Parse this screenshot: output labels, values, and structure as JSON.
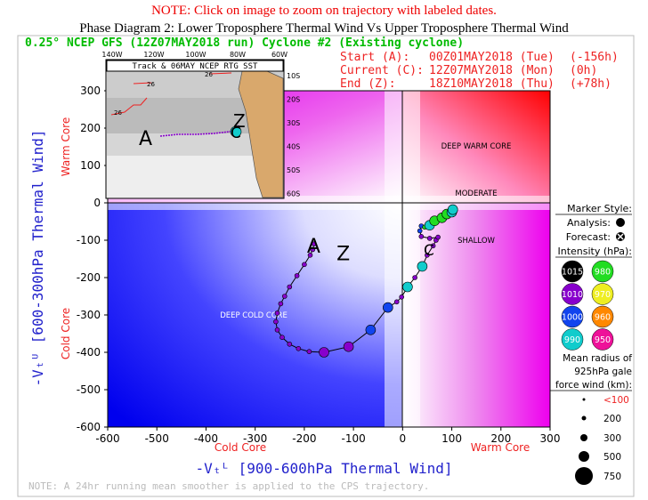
{
  "header": {
    "note": "NOTE: Click on image to zoom on trajectory with labeled dates.",
    "title": "Phase Diagram 2: Lower Troposphere Thermal Wind Vs Upper Troposphere Thermal Wind"
  },
  "run_title": "0.25° NCEP GFS (12Z07MAY2018 run) Cyclone #2 (Existing cyclone)",
  "times": [
    {
      "label": "Start (A):",
      "time": "00Z01MAY2018 (Tue)",
      "offset": "(-156h)"
    },
    {
      "label": "Current (C):",
      "time": "12Z07MAY2018 (Mon)",
      "offset": "(0h)"
    },
    {
      "label": "End (Z):",
      "time": "18Z10MAY2018 (Thu)",
      "offset": "(+78h)"
    }
  ],
  "inset": {
    "title": "Track & 06MAY NCEP RTG SST",
    "lon_labels": [
      "140W",
      "120W",
      "100W",
      "80W",
      "60W"
    ],
    "lat_labels": [
      "10S",
      "20S",
      "30S",
      "40S",
      "50S",
      "60S"
    ],
    "contours": [
      "26",
      "26",
      "26"
    ],
    "markers": {
      "start": "A",
      "current": "C",
      "end": "Z"
    }
  },
  "quadrant_labels": {
    "deep_warm": "DEEP WARM CORE",
    "moderate": "MODERATE",
    "shallow": "SHALLOW",
    "deep_cold": "DEEP COLD CORE"
  },
  "axis_side_labels": {
    "y_warm": "Warm Core",
    "y_cold": "Cold Core",
    "x_cold": "Cold Core",
    "x_warm": "Warm Core"
  },
  "legend": {
    "marker_style_title": "Marker Style:",
    "analysis_label": "Analysis:",
    "forecast_label": "Forecast:",
    "intensity_title": "Intensity (hPa):",
    "intensity": [
      {
        "value": "1015",
        "color": "#000000",
        "text": "#ffffff"
      },
      {
        "value": "980",
        "color": "#22dd22",
        "text": "#ffffff"
      },
      {
        "value": "1010",
        "color": "#8800cc",
        "text": "#ffffff"
      },
      {
        "value": "970",
        "color": "#eeee22",
        "text": "#ffffff"
      },
      {
        "value": "1000",
        "color": "#1144ee",
        "text": "#ffffff"
      },
      {
        "value": "960",
        "color": "#ff8800",
        "text": "#ffffff"
      },
      {
        "value": "990",
        "color": "#11cccc",
        "text": "#ffffff"
      },
      {
        "value": "950",
        "color": "#ee1199",
        "text": "#ffffff"
      }
    ],
    "radius_title": [
      "Mean radius of",
      "925hPa gale",
      "force wind (km):"
    ],
    "radius": [
      "<100",
      "200",
      "300",
      "500",
      "750"
    ]
  },
  "footnote": "NOTE: A 24hr running mean smoother is applied to the CPS trajectory.",
  "chart_data": {
    "type": "scatter",
    "xlabel": "-Vₜᴸ [900-600hPa Thermal Wind]",
    "ylabel": "-Vₜᵁ [600-300hPa Thermal Wind]",
    "xlim": [
      -600,
      300
    ],
    "ylim": [
      -600,
      300
    ],
    "x_ticks": [
      "-600",
      "-500",
      "-400",
      "-300",
      "-200",
      "-100",
      "0",
      "100",
      "200",
      "300"
    ],
    "y_ticks": [
      "-600",
      "-500",
      "-400",
      "-300",
      "-200",
      "-100",
      "0",
      "100",
      "200",
      "300"
    ],
    "trajectory_labels": {
      "start": "A",
      "end": "Z"
    },
    "points": [
      {
        "x": -180,
        "y": -110,
        "hpa": 1010,
        "r": 2
      },
      {
        "x": -183,
        "y": -125,
        "hpa": 1010,
        "r": 2
      },
      {
        "x": -188,
        "y": -140,
        "hpa": 1010,
        "r": 2
      },
      {
        "x": -200,
        "y": -165,
        "hpa": 1010,
        "r": 2
      },
      {
        "x": -215,
        "y": -195,
        "hpa": 1010,
        "r": 2
      },
      {
        "x": -230,
        "y": -225,
        "hpa": 1010,
        "r": 2
      },
      {
        "x": -240,
        "y": -250,
        "hpa": 1010,
        "r": 2
      },
      {
        "x": -248,
        "y": -270,
        "hpa": 1010,
        "r": 2
      },
      {
        "x": -255,
        "y": -295,
        "hpa": 1010,
        "r": 2
      },
      {
        "x": -258,
        "y": -318,
        "hpa": 1010,
        "r": 2
      },
      {
        "x": -255,
        "y": -340,
        "hpa": 1010,
        "r": 2
      },
      {
        "x": -245,
        "y": -360,
        "hpa": 1010,
        "r": 2
      },
      {
        "x": -230,
        "y": -378,
        "hpa": 1010,
        "r": 2
      },
      {
        "x": -212,
        "y": -390,
        "hpa": 1010,
        "r": 2
      },
      {
        "x": -190,
        "y": -398,
        "hpa": 1010,
        "r": 2
      },
      {
        "x": -160,
        "y": -400,
        "hpa": 1010,
        "r": 3
      },
      {
        "x": -110,
        "y": -385,
        "hpa": 1010,
        "r": 3
      },
      {
        "x": -65,
        "y": -340,
        "hpa": 1000,
        "r": 3
      },
      {
        "x": -30,
        "y": -280,
        "hpa": 1000,
        "r": 3
      },
      {
        "x": -12,
        "y": -265,
        "hpa": 1010,
        "r": 2
      },
      {
        "x": -2,
        "y": -252,
        "hpa": 1010,
        "r": 2
      },
      {
        "x": 10,
        "y": -225,
        "hpa": 990,
        "r": 3
      },
      {
        "x": 25,
        "y": -200,
        "hpa": 1010,
        "r": 2
      },
      {
        "x": 40,
        "y": -170,
        "hpa": 990,
        "r": 3
      },
      {
        "x": 50,
        "y": -140,
        "hpa": 1010,
        "r": 2
      },
      {
        "x": 62,
        "y": -115,
        "hpa": 1010,
        "r": 2
      },
      {
        "x": 68,
        "y": -100,
        "hpa": 1010,
        "r": 2
      },
      {
        "x": 72,
        "y": -92,
        "hpa": 1010,
        "r": 2
      },
      {
        "x": 55,
        "y": -95,
        "hpa": 1010,
        "r": 2
      },
      {
        "x": 38,
        "y": -90,
        "hpa": 1010,
        "r": 2
      },
      {
        "x": 35,
        "y": -75,
        "hpa": 1000,
        "r": 2
      },
      {
        "x": 38,
        "y": -62,
        "hpa": 1000,
        "r": 2
      },
      {
        "x": 45,
        "y": -65,
        "hpa": 980,
        "r": 2
      },
      {
        "x": 55,
        "y": -60,
        "hpa": 990,
        "r": 3
      },
      {
        "x": 65,
        "y": -48,
        "hpa": 980,
        "r": 3
      },
      {
        "x": 80,
        "y": -40,
        "hpa": 980,
        "r": 3
      },
      {
        "x": 90,
        "y": -30,
        "hpa": 980,
        "r": 3
      },
      {
        "x": 100,
        "y": -25,
        "hpa": 990,
        "r": 3
      },
      {
        "x": 102,
        "y": -18,
        "hpa": 990,
        "r": 3
      }
    ]
  }
}
